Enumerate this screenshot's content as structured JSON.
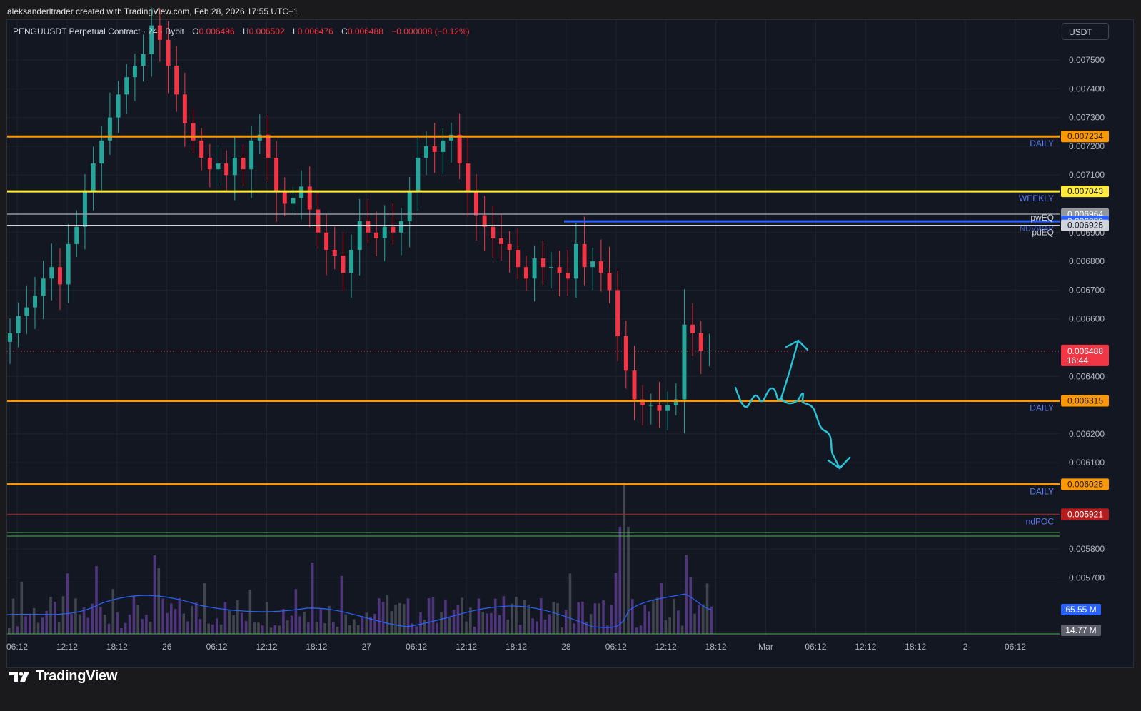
{
  "header": {
    "attribution": "aleksanderltrader created with TradingView.com, Feb 28, 2026 17:55 UTC+1"
  },
  "legend": {
    "symbol": "PENGUUSDT Perpetual Contract · 24 · Bybit",
    "o_label": "O",
    "o": "0.006496",
    "h_label": "H",
    "h": "0.006502",
    "l_label": "L",
    "l": "0.006476",
    "c_label": "C",
    "c": "0.006488",
    "change": "−0.000008 (−0.12%)"
  },
  "currency": "USDT",
  "brand": "TradingView",
  "colors": {
    "background": "#131722",
    "up": "#26a69a",
    "down": "#f23645",
    "daily_level": "#ff9800",
    "weekly_level": "#ffeb3b",
    "ndvwap": "#2962ff",
    "ndpoc": "#b71c1c",
    "drawing": "#26c6da",
    "volume_ma": "#2962ff"
  },
  "chart_data": {
    "type": "candlestick",
    "symbol": "PENGUUSDT",
    "interval_minutes": 24,
    "exchange": "Bybit",
    "y_axis": {
      "min": 0.0056,
      "max": 0.0076,
      "ticks": [
        "0.007500",
        "0.007400",
        "0.007300",
        "0.007200",
        "0.007100",
        "0.006900",
        "0.006800",
        "0.006700",
        "0.006600",
        "0.006400",
        "0.006200",
        "0.006100",
        "0.005800",
        "0.005700"
      ]
    },
    "x_axis": {
      "ticks": [
        "06:12",
        "12:12",
        "18:12",
        "26",
        "06:12",
        "12:12",
        "18:12",
        "27",
        "06:12",
        "12:12",
        "18:12",
        "28",
        "06:12",
        "12:12",
        "18:12",
        "Mar",
        "06:12",
        "12:12",
        "18:12",
        "2",
        "06:12"
      ]
    },
    "levels": [
      {
        "label": "DAILY",
        "price": 0.007234,
        "tag": "0.007234",
        "color": "#ff9800"
      },
      {
        "label": "WEEKLY",
        "price": 0.007043,
        "tag": "0.007043",
        "color": "#ffeb3b"
      },
      {
        "label": "",
        "price": 0.006964,
        "tag": "0.006964",
        "color": "#9598a1"
      },
      {
        "label": "pwEQ",
        "price": 0.006939,
        "tag": "0.006939",
        "color": "#2962ff"
      },
      {
        "label": "pdEQ",
        "price": 0.006925,
        "tag": "0.006925",
        "color": "#d1d4dc"
      },
      {
        "label": "DAILY",
        "price": 0.006315,
        "tag": "0.006315",
        "color": "#ff9800"
      },
      {
        "label": "DAILY",
        "price": 0.006025,
        "tag": "0.006025",
        "color": "#ff9800"
      },
      {
        "label": "ndPOC",
        "price": 0.005921,
        "tag": "0.005921",
        "color": "#b71c1c"
      }
    ],
    "ndvwap_label": "NDVWAP",
    "last_price": {
      "value": 0.006488,
      "tag": "0.006488",
      "countdown": "16:44"
    },
    "volume": {
      "last": "65.55 M",
      "ma": "14.77 M"
    },
    "closes": [
      0.00655,
      0.00661,
      0.00664,
      0.00668,
      0.00674,
      0.00678,
      0.00672,
      0.00686,
      0.00692,
      0.00704,
      0.00714,
      0.00722,
      0.0073,
      0.00738,
      0.00744,
      0.00748,
      0.00752,
      0.00762,
      0.00757,
      0.00748,
      0.00738,
      0.00728,
      0.00722,
      0.00716,
      0.00712,
      0.00714,
      0.0071,
      0.00716,
      0.00712,
      0.00722,
      0.00724,
      0.00716,
      0.00704,
      0.007,
      0.00702,
      0.00706,
      0.00698,
      0.0069,
      0.00684,
      0.00682,
      0.00676,
      0.00684,
      0.00694,
      0.0069,
      0.00688,
      0.00692,
      0.0069,
      0.00694,
      0.00704,
      0.00716,
      0.0072,
      0.00718,
      0.00722,
      0.00724,
      0.00714,
      0.00704,
      0.00696,
      0.00692,
      0.00688,
      0.00686,
      0.00684,
      0.00678,
      0.00674,
      0.00681,
      0.00678,
      0.00678,
      0.00676,
      0.00674,
      0.00686,
      0.00678,
      0.0068,
      0.00676,
      0.0067,
      0.00654,
      0.00642,
      0.00632,
      0.0063,
      0.0063,
      0.00628,
      0.0063,
      0.00632,
      0.00658,
      0.00655,
      0.00649,
      0.00649
    ]
  }
}
